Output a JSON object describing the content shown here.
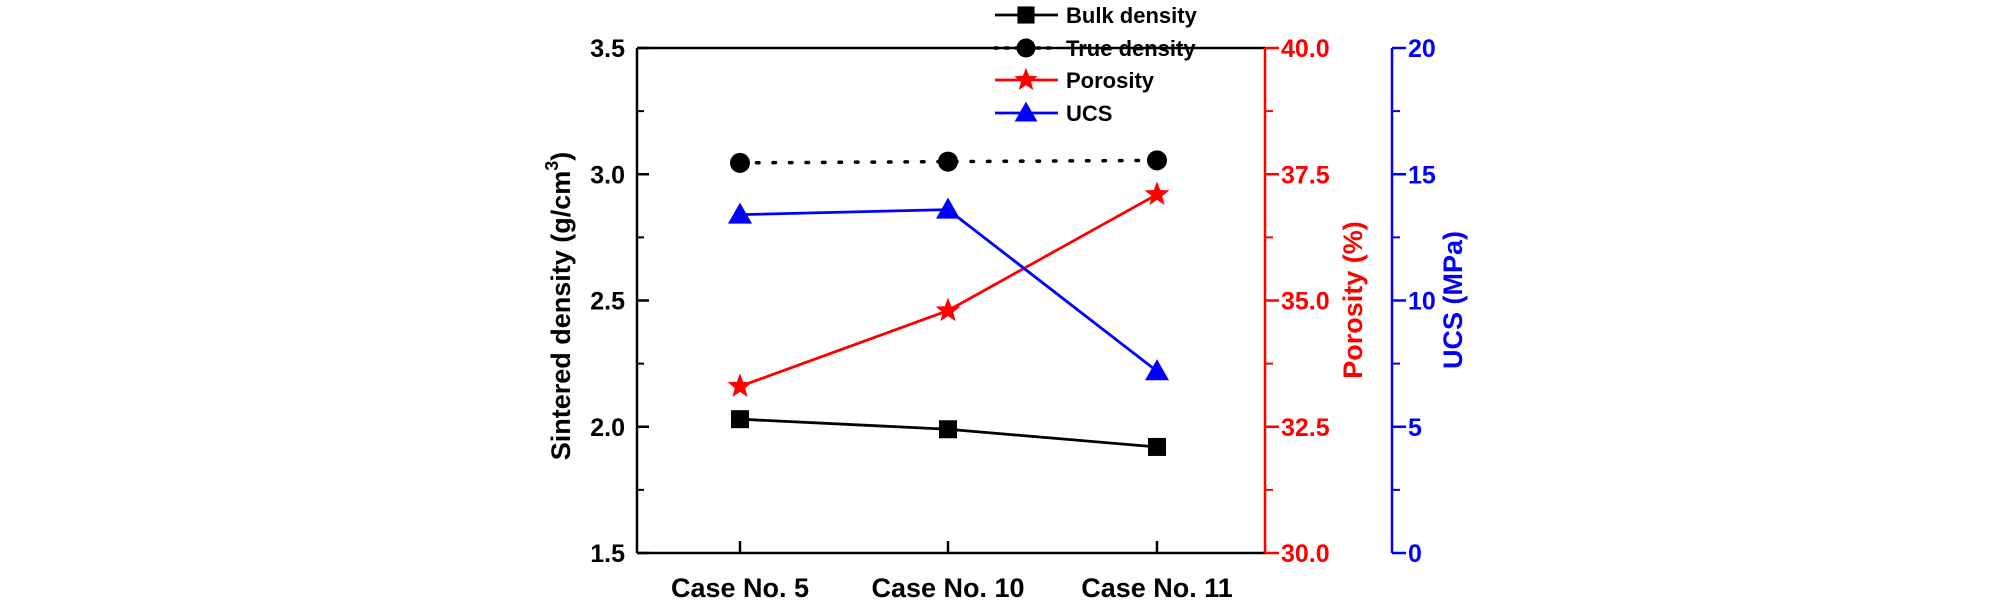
{
  "chart_data": {
    "type": "line",
    "categories": [
      "Case No. 5",
      "Case No. 10",
      "Case No. 11"
    ],
    "axes": {
      "left": {
        "label_main": "Sintered density (g/cm",
        "label_sup": "3",
        "label_end": ")",
        "range": [
          1.5,
          3.5
        ],
        "ticks": [
          "1.5",
          "2.0",
          "2.5",
          "3.0",
          "3.5"
        ],
        "color": "#000000"
      },
      "right1": {
        "label": "Porosity (%)",
        "range": [
          30.0,
          40.0
        ],
        "ticks": [
          "30.0",
          "32.5",
          "35.0",
          "37.5",
          "40.0"
        ],
        "color": "#ff0000"
      },
      "right2": {
        "label": "UCS (MPa)",
        "range": [
          0,
          20
        ],
        "ticks": [
          "0",
          "5",
          "10",
          "15",
          "20"
        ],
        "color": "#0000ff"
      }
    },
    "series": [
      {
        "name": "Bulk density",
        "axis": "left",
        "values": [
          2.03,
          1.99,
          1.92
        ],
        "color": "#000000",
        "marker": "square",
        "line": "solid"
      },
      {
        "name": "True density",
        "axis": "left",
        "values": [
          3.045,
          3.05,
          3.055
        ],
        "color": "#000000",
        "marker": "circle",
        "line": "dotted"
      },
      {
        "name": "Porosity",
        "axis": "right1",
        "values": [
          33.3,
          34.8,
          37.1
        ],
        "color": "#ff0000",
        "marker": "star",
        "line": "solid"
      },
      {
        "name": "UCS",
        "axis": "right2",
        "values": [
          13.4,
          13.6,
          7.2
        ],
        "color": "#0000ff",
        "marker": "triangle",
        "line": "solid"
      }
    ],
    "legend_position": "top-right"
  }
}
